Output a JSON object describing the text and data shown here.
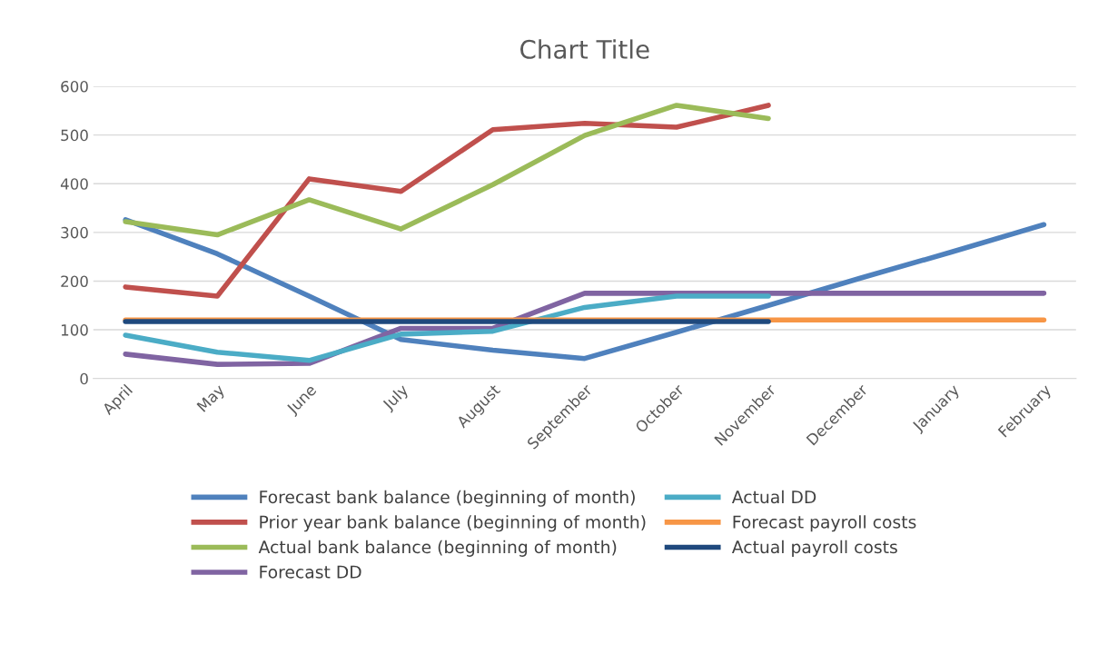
{
  "chart_data": {
    "type": "line",
    "title": "Chart Title",
    "categories": [
      "April",
      "May",
      "June",
      "July",
      "August",
      "September",
      "October",
      "November",
      "December",
      "January",
      "February"
    ],
    "series": [
      {
        "name": "Forecast bank balance (beginning of month)",
        "color": "#4f81bd",
        "values": [
          326,
          256,
          169,
          80,
          58,
          41,
          95,
          150,
          206,
          260,
          316
        ]
      },
      {
        "name": "Prior year bank balance (beginning of month)",
        "color": "#c0504d",
        "values": [
          188,
          169,
          410,
          384,
          511,
          524,
          516,
          561,
          null,
          null,
          null
        ]
      },
      {
        "name": "Actual bank balance (beginning of month)",
        "color": "#9bbb59",
        "values": [
          322,
          295,
          367,
          307,
          398,
          499,
          561,
          534,
          null,
          null,
          null
        ]
      },
      {
        "name": "Forecast DD",
        "color": "#8064a2",
        "values": [
          50,
          29,
          31,
          103,
          103,
          175,
          175,
          175,
          175,
          175,
          175
        ]
      },
      {
        "name": "Actual DD",
        "color": "#4bacc6",
        "values": [
          89,
          54,
          37,
          91,
          97,
          146,
          169,
          169,
          null,
          null,
          null
        ]
      },
      {
        "name": "Forecast payroll costs",
        "color": "#f79646",
        "values": [
          120,
          120,
          120,
          120,
          120,
          120,
          120,
          120,
          120,
          120,
          120
        ]
      },
      {
        "name": "Actual payroll costs",
        "color": "#1f497d",
        "values": [
          117,
          117,
          117,
          117,
          117,
          117,
          117,
          117,
          null,
          null,
          null
        ]
      }
    ],
    "ylim": [
      0,
      600
    ],
    "yticks": [
      0,
      100,
      200,
      300,
      400,
      500,
      600
    ],
    "grid": "y",
    "legend": "bottom",
    "marker": "none",
    "line_style": "solid"
  }
}
